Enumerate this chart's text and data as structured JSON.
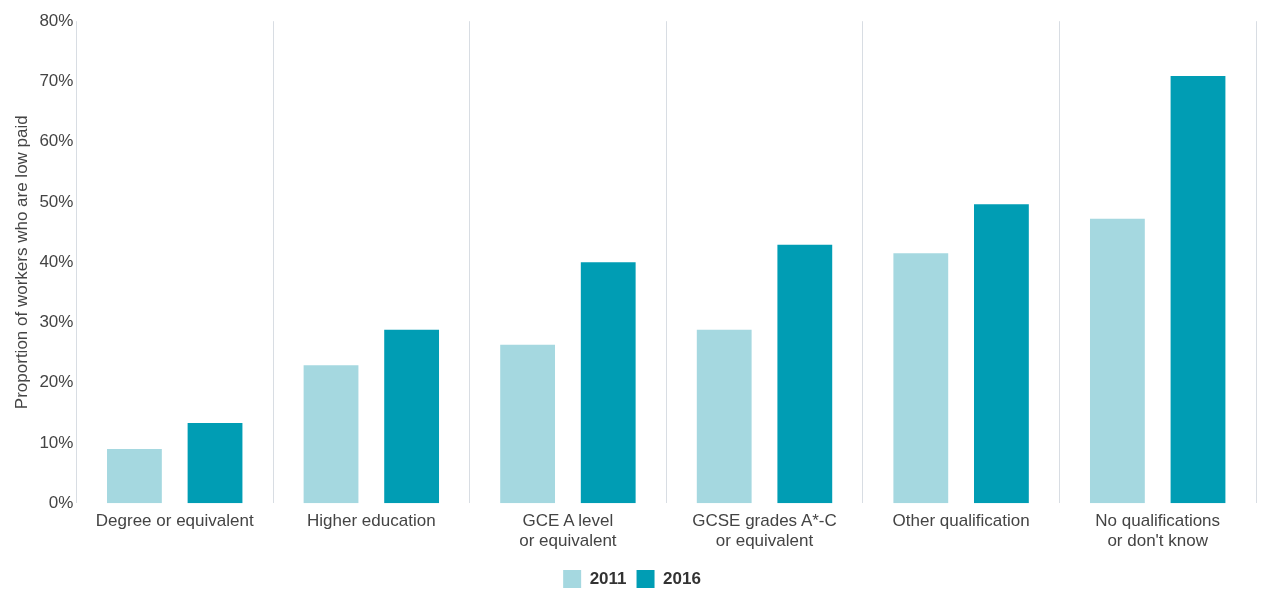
{
  "chart_data": {
    "type": "bar",
    "ylabel": "Proportion of workers who are low paid",
    "categories": [
      "Degree or equivalent",
      "Higher education",
      "GCE A level or equivalent",
      "GCSE grades A*-C or equivalent",
      "Other qualification",
      "No qualifications or don't know"
    ],
    "series": [
      {
        "name": "2011",
        "color": "#a5d8e0",
        "values": [
          9,
          22.9,
          26.3,
          28.8,
          41.5,
          47.2
        ]
      },
      {
        "name": "2016",
        "color": "#009db4",
        "values": [
          13.3,
          28.8,
          40,
          42.9,
          49.6,
          70.9
        ]
      }
    ],
    "ylim": [
      0,
      80
    ],
    "yticks": [
      {
        "value": 0,
        "label": "0%"
      },
      {
        "value": 10,
        "label": "10%"
      },
      {
        "value": 20,
        "label": "20%"
      },
      {
        "value": 30,
        "label": "30%"
      },
      {
        "value": 40,
        "label": "40%"
      },
      {
        "value": 50,
        "label": "50%"
      },
      {
        "value": 60,
        "label": "60%"
      },
      {
        "value": 70,
        "label": "70%"
      },
      {
        "value": 80,
        "label": "80%"
      }
    ],
    "grid": "x",
    "legend": "bottom"
  }
}
